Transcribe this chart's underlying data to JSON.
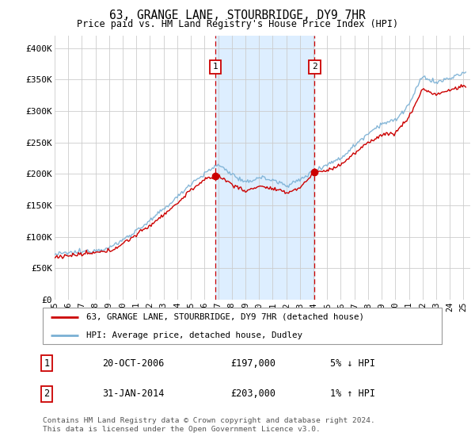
{
  "title": "63, GRANGE LANE, STOURBRIDGE, DY9 7HR",
  "subtitle": "Price paid vs. HM Land Registry's House Price Index (HPI)",
  "legend_line1": "63, GRANGE LANE, STOURBRIDGE, DY9 7HR (detached house)",
  "legend_line2": "HPI: Average price, detached house, Dudley",
  "transaction1_date": "20-OCT-2006",
  "transaction1_price": "£197,000",
  "transaction1_hpi": "5% ↓ HPI",
  "transaction2_date": "31-JAN-2014",
  "transaction2_price": "£203,000",
  "transaction2_hpi": "1% ↑ HPI",
  "footer": "Contains HM Land Registry data © Crown copyright and database right 2024.\nThis data is licensed under the Open Government Licence v3.0.",
  "line1_color": "#cc0000",
  "line2_color": "#7ab0d4",
  "vline_color": "#cc0000",
  "shade_color": "#ddeeff",
  "ylim_min": 0,
  "ylim_max": 420000,
  "yticks": [
    0,
    50000,
    100000,
    150000,
    200000,
    250000,
    300000,
    350000,
    400000
  ],
  "ytick_labels": [
    "£0",
    "£50K",
    "£100K",
    "£150K",
    "£200K",
    "£250K",
    "£300K",
    "£350K",
    "£400K"
  ],
  "transaction1_x": 2006.79,
  "transaction2_x": 2014.08,
  "transaction1_y": 197000,
  "transaction2_y": 203000,
  "xmin": 1995,
  "xmax": 2025.5,
  "hpi_anchors_t": [
    1995,
    1997,
    1999,
    2000,
    2002,
    2004,
    2005,
    2006,
    2007,
    2008,
    2009,
    2010,
    2011,
    2012,
    2013,
    2014,
    2015,
    2016,
    2017,
    2018,
    2019,
    2020,
    2021,
    2022,
    2023,
    2024,
    2025
  ],
  "hpi_anchors_v": [
    72000,
    76000,
    82000,
    95000,
    125000,
    163000,
    185000,
    200000,
    215000,
    200000,
    185000,
    195000,
    190000,
    182000,
    190000,
    205000,
    215000,
    225000,
    245000,
    265000,
    280000,
    285000,
    310000,
    355000,
    345000,
    352000,
    360000
  ],
  "prop_anchors_t": [
    1995,
    1997,
    1999,
    2000,
    2002,
    2004,
    2005,
    2006,
    2006.79,
    2007,
    2008,
    2009,
    2010,
    2011,
    2012,
    2013,
    2014.08,
    2015,
    2016,
    2017,
    2018,
    2019,
    2020,
    2021,
    2022,
    2023,
    2024,
    2025
  ],
  "prop_anchors_v": [
    68000,
    72000,
    77000,
    89000,
    118000,
    153000,
    175000,
    190000,
    197000,
    197000,
    184000,
    172000,
    181000,
    176000,
    170000,
    178000,
    203000,
    205000,
    215000,
    232000,
    250000,
    262000,
    265000,
    290000,
    335000,
    326000,
    333000,
    340000
  ]
}
